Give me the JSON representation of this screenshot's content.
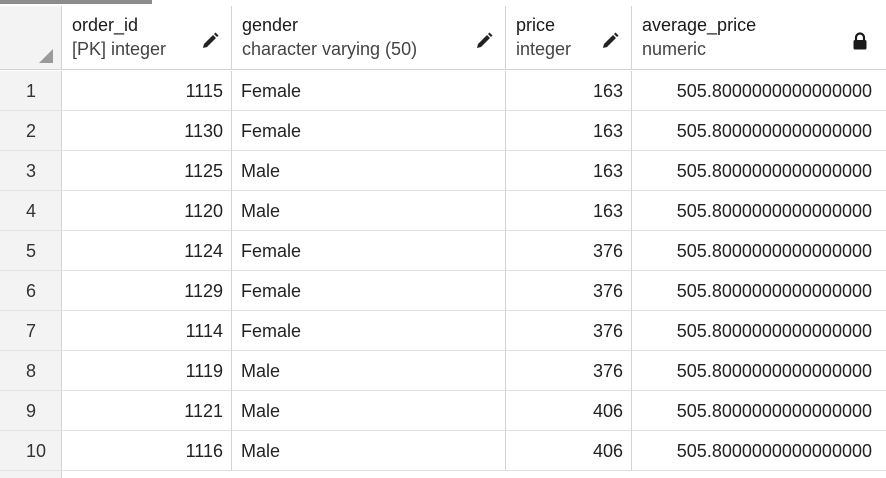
{
  "columns": [
    {
      "name": "order_id",
      "type": "[PK] integer",
      "icon": "pencil-icon"
    },
    {
      "name": "gender",
      "type": "character varying (50)",
      "icon": "pencil-icon"
    },
    {
      "name": "price",
      "type": "integer",
      "icon": "pencil-icon"
    },
    {
      "name": "average_price",
      "type": "numeric",
      "icon": "lock-icon"
    }
  ],
  "rows": [
    {
      "num": "1",
      "order_id": "1115",
      "gender": "Female",
      "price": "163",
      "average_price": "505.8000000000000000"
    },
    {
      "num": "2",
      "order_id": "1130",
      "gender": "Female",
      "price": "163",
      "average_price": "505.8000000000000000"
    },
    {
      "num": "3",
      "order_id": "1125",
      "gender": "Male",
      "price": "163",
      "average_price": "505.8000000000000000"
    },
    {
      "num": "4",
      "order_id": "1120",
      "gender": "Male",
      "price": "163",
      "average_price": "505.8000000000000000"
    },
    {
      "num": "5",
      "order_id": "1124",
      "gender": "Female",
      "price": "376",
      "average_price": "505.8000000000000000"
    },
    {
      "num": "6",
      "order_id": "1129",
      "gender": "Female",
      "price": "376",
      "average_price": "505.8000000000000000"
    },
    {
      "num": "7",
      "order_id": "1114",
      "gender": "Female",
      "price": "376",
      "average_price": "505.8000000000000000"
    },
    {
      "num": "8",
      "order_id": "1119",
      "gender": "Male",
      "price": "376",
      "average_price": "505.8000000000000000"
    },
    {
      "num": "9",
      "order_id": "1121",
      "gender": "Male",
      "price": "406",
      "average_price": "505.8000000000000000"
    },
    {
      "num": "10",
      "order_id": "1116",
      "gender": "Male",
      "price": "406",
      "average_price": "505.8000000000000000"
    }
  ]
}
